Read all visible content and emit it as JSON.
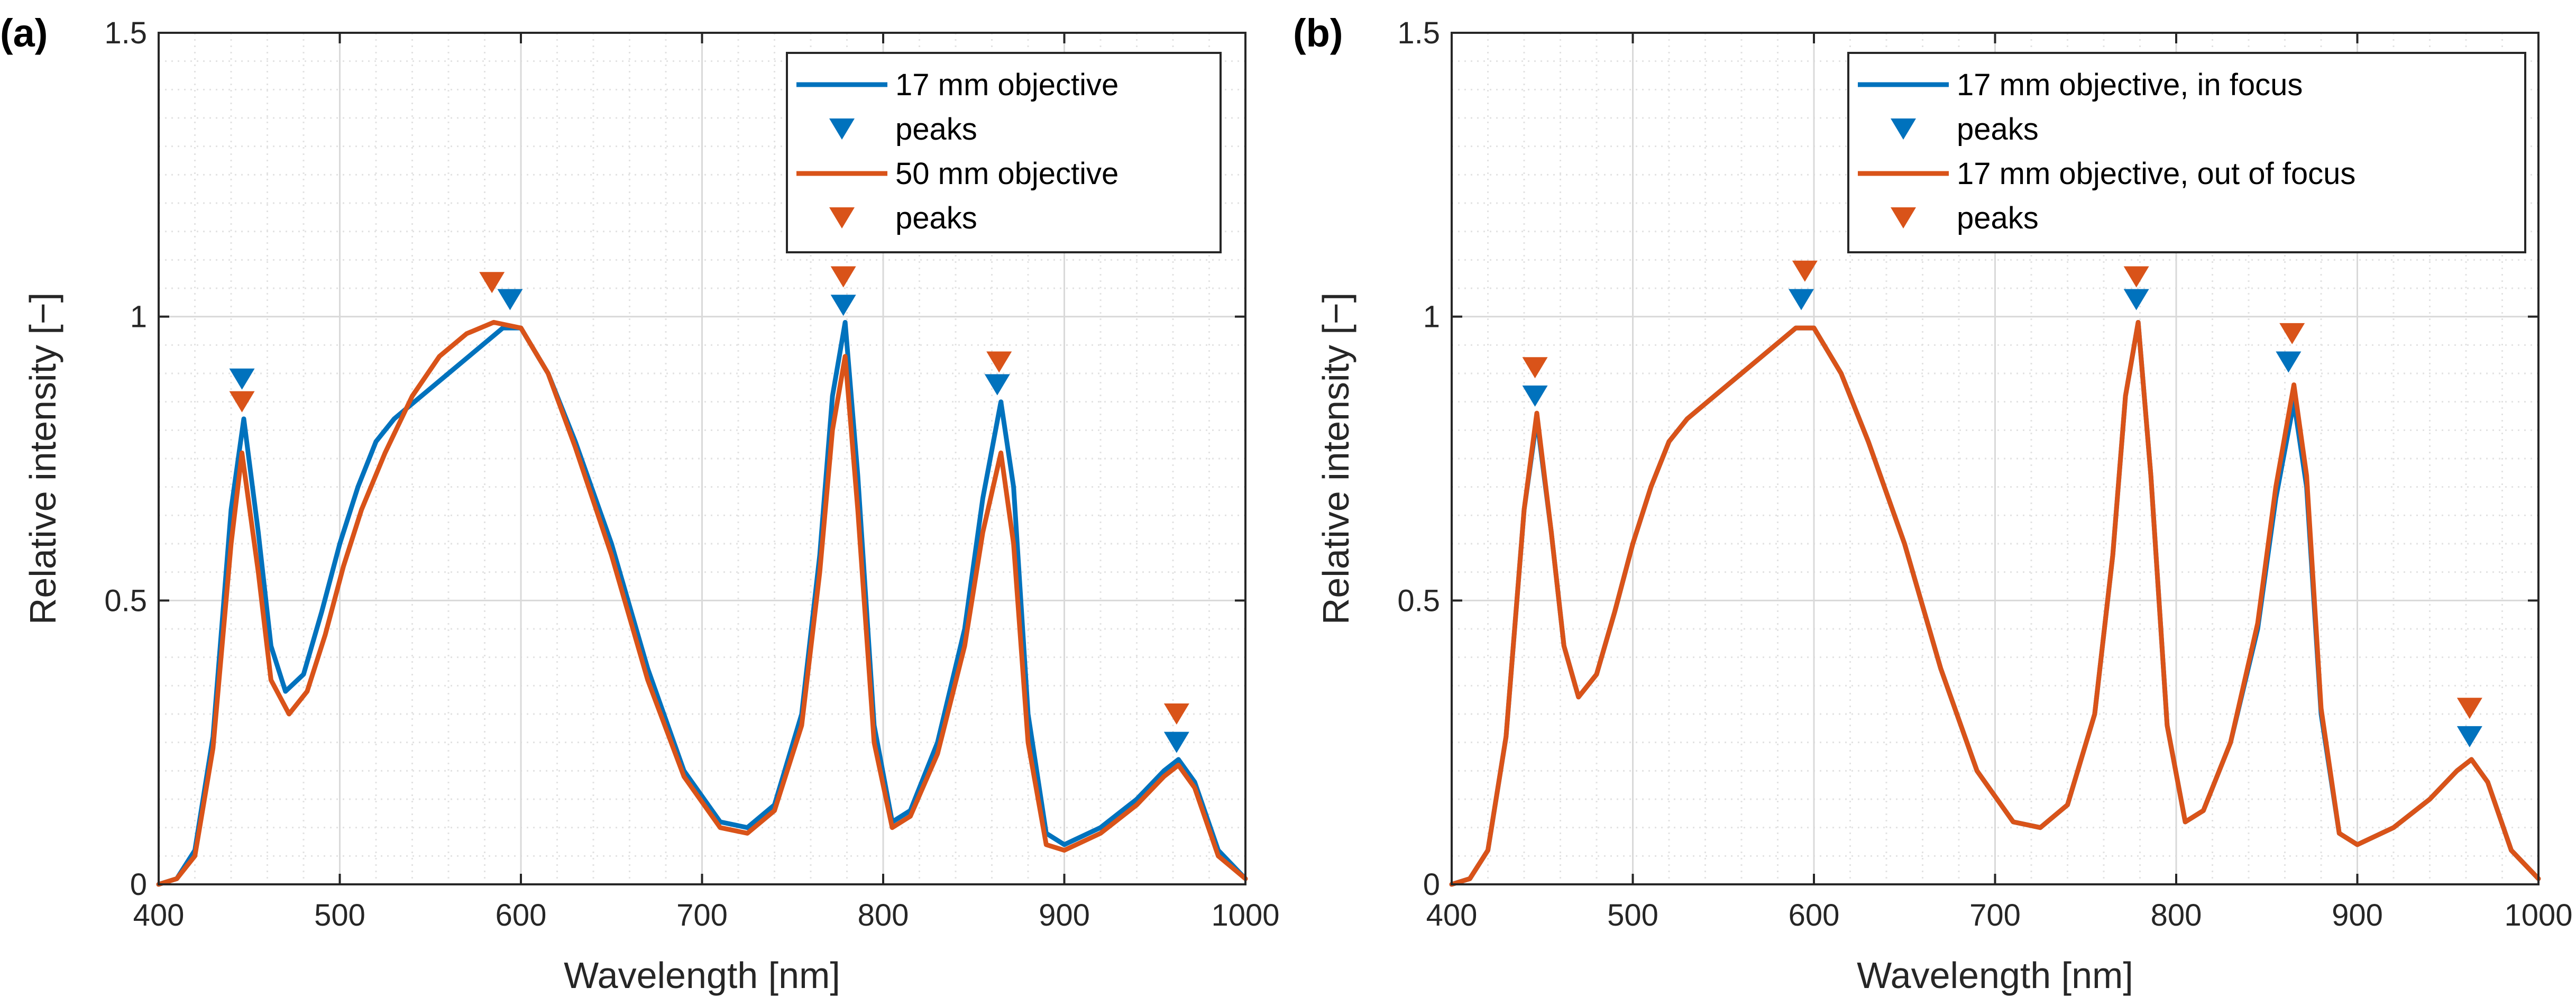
{
  "colors": {
    "blue": "#0072BD",
    "orange": "#D95319",
    "grid": "#d9d9d9",
    "axis": "#262626"
  },
  "chart_data": [
    {
      "type": "line",
      "panel_label": "(a)",
      "xlabel": "Wavelength [nm]",
      "ylabel": "Relative intensity [−]",
      "xlim": [
        400,
        1000
      ],
      "ylim": [
        0,
        1.5
      ],
      "xticks": [
        400,
        500,
        600,
        700,
        800,
        900,
        1000
      ],
      "xtick_labels": [
        "400",
        "500",
        "600",
        "700",
        "800",
        "900",
        "1000"
      ],
      "yticks": [
        0,
        0.5,
        1,
        1.5
      ],
      "ytick_labels": [
        "0",
        "0.5",
        "1",
        "1.5"
      ],
      "grid": true,
      "legend_position": "top-right",
      "legend": [
        "17 mm objective",
        "peaks",
        "50 mm objective",
        "peaks"
      ],
      "series": [
        {
          "name": "17 mm objective",
          "color": "blue",
          "x": [
            400,
            410,
            420,
            430,
            440,
            447,
            455,
            462,
            470,
            480,
            490,
            500,
            510,
            520,
            530,
            545,
            560,
            575,
            590,
            600,
            615,
            630,
            650,
            670,
            690,
            710,
            725,
            740,
            755,
            765,
            772,
            779,
            786,
            795,
            805,
            815,
            830,
            845,
            855,
            865,
            872,
            880,
            890,
            900,
            920,
            940,
            955,
            963,
            972,
            985,
            1000
          ],
          "y": [
            0.0,
            0.01,
            0.06,
            0.26,
            0.66,
            0.82,
            0.62,
            0.42,
            0.34,
            0.37,
            0.48,
            0.6,
            0.7,
            0.78,
            0.82,
            0.86,
            0.9,
            0.94,
            0.98,
            0.98,
            0.9,
            0.78,
            0.6,
            0.38,
            0.2,
            0.11,
            0.1,
            0.14,
            0.3,
            0.58,
            0.86,
            0.99,
            0.72,
            0.28,
            0.11,
            0.13,
            0.25,
            0.45,
            0.68,
            0.85,
            0.7,
            0.3,
            0.09,
            0.07,
            0.1,
            0.15,
            0.2,
            0.22,
            0.18,
            0.06,
            0.01
          ]
        },
        {
          "name": "50 mm objective",
          "color": "orange",
          "x": [
            400,
            410,
            420,
            430,
            440,
            446,
            455,
            462,
            472,
            482,
            492,
            502,
            512,
            525,
            540,
            555,
            570,
            585,
            600,
            615,
            630,
            650,
            670,
            690,
            710,
            725,
            740,
            755,
            765,
            772,
            779,
            786,
            795,
            805,
            815,
            830,
            845,
            855,
            865,
            872,
            880,
            890,
            900,
            920,
            940,
            955,
            963,
            972,
            985,
            1000
          ],
          "y": [
            0.0,
            0.01,
            0.05,
            0.24,
            0.6,
            0.76,
            0.55,
            0.36,
            0.3,
            0.34,
            0.44,
            0.56,
            0.66,
            0.76,
            0.86,
            0.93,
            0.97,
            0.99,
            0.98,
            0.9,
            0.77,
            0.58,
            0.36,
            0.19,
            0.1,
            0.09,
            0.13,
            0.28,
            0.55,
            0.8,
            0.93,
            0.66,
            0.25,
            0.1,
            0.12,
            0.23,
            0.42,
            0.62,
            0.76,
            0.6,
            0.25,
            0.07,
            0.06,
            0.09,
            0.14,
            0.19,
            0.21,
            0.17,
            0.05,
            0.01
          ]
        }
      ],
      "peaks": [
        {
          "name": "peaks",
          "color": "blue",
          "x": [
            446,
            594,
            778,
            863,
            962
          ],
          "y": [
            0.89,
            1.03,
            1.02,
            0.88,
            0.25
          ]
        },
        {
          "name": "peaks",
          "color": "orange",
          "x": [
            446,
            584,
            778,
            864,
            962
          ],
          "y": [
            0.85,
            1.06,
            1.07,
            0.92,
            0.3
          ]
        }
      ]
    },
    {
      "type": "line",
      "panel_label": "(b)",
      "xlabel": "Wavelength [nm]",
      "ylabel": "Relative intensity [−]",
      "xlim": [
        400,
        1000
      ],
      "ylim": [
        0,
        1.5
      ],
      "xticks": [
        400,
        500,
        600,
        700,
        800,
        900,
        1000
      ],
      "xtick_labels": [
        "400",
        "500",
        "600",
        "700",
        "800",
        "900",
        "1000"
      ],
      "yticks": [
        0,
        0.5,
        1,
        1.5
      ],
      "ytick_labels": [
        "0",
        "0.5",
        "1",
        "1.5"
      ],
      "grid": true,
      "legend_position": "top-right",
      "legend": [
        "17 mm objective, in focus",
        "peaks",
        "17 mm objective, out of focus",
        "peaks"
      ],
      "series": [
        {
          "name": "17 mm objective, in focus",
          "color": "blue",
          "x": [
            400,
            410,
            420,
            430,
            440,
            447,
            455,
            462,
            470,
            480,
            490,
            500,
            510,
            520,
            530,
            545,
            560,
            575,
            590,
            600,
            615,
            630,
            650,
            670,
            690,
            710,
            725,
            740,
            755,
            765,
            772,
            779,
            786,
            795,
            805,
            815,
            830,
            845,
            855,
            865,
            872,
            880,
            890,
            900,
            920,
            940,
            955,
            963,
            972,
            985,
            1000
          ],
          "y": [
            0.0,
            0.01,
            0.06,
            0.26,
            0.66,
            0.82,
            0.62,
            0.42,
            0.33,
            0.37,
            0.48,
            0.6,
            0.7,
            0.78,
            0.82,
            0.86,
            0.9,
            0.94,
            0.98,
            0.98,
            0.9,
            0.78,
            0.6,
            0.38,
            0.2,
            0.11,
            0.1,
            0.14,
            0.3,
            0.58,
            0.86,
            0.99,
            0.72,
            0.28,
            0.11,
            0.13,
            0.25,
            0.45,
            0.68,
            0.85,
            0.7,
            0.3,
            0.09,
            0.07,
            0.1,
            0.15,
            0.2,
            0.22,
            0.18,
            0.06,
            0.01
          ]
        },
        {
          "name": "17 mm objective, out of focus",
          "color": "orange",
          "x": [
            400,
            410,
            420,
            430,
            440,
            447,
            455,
            462,
            470,
            480,
            490,
            500,
            510,
            520,
            530,
            545,
            560,
            575,
            590,
            600,
            615,
            630,
            650,
            670,
            690,
            710,
            725,
            740,
            755,
            765,
            772,
            779,
            786,
            795,
            805,
            815,
            830,
            845,
            855,
            865,
            872,
            880,
            890,
            900,
            920,
            940,
            955,
            963,
            972,
            985,
            1000
          ],
          "y": [
            0.0,
            0.01,
            0.06,
            0.26,
            0.66,
            0.83,
            0.62,
            0.42,
            0.33,
            0.37,
            0.48,
            0.6,
            0.7,
            0.78,
            0.82,
            0.86,
            0.9,
            0.94,
            0.98,
            0.98,
            0.9,
            0.78,
            0.6,
            0.38,
            0.2,
            0.11,
            0.1,
            0.14,
            0.3,
            0.58,
            0.86,
            0.99,
            0.72,
            0.28,
            0.11,
            0.13,
            0.25,
            0.46,
            0.7,
            0.88,
            0.72,
            0.31,
            0.09,
            0.07,
            0.1,
            0.15,
            0.2,
            0.22,
            0.18,
            0.06,
            0.01
          ]
        }
      ],
      "peaks": [
        {
          "name": "peaks",
          "color": "blue",
          "x": [
            446,
            593,
            778,
            862,
            962
          ],
          "y": [
            0.86,
            1.03,
            1.03,
            0.92,
            0.26
          ]
        },
        {
          "name": "peaks",
          "color": "orange",
          "x": [
            446,
            595,
            778,
            864,
            962
          ],
          "y": [
            0.91,
            1.08,
            1.07,
            0.97,
            0.31
          ]
        }
      ]
    }
  ]
}
